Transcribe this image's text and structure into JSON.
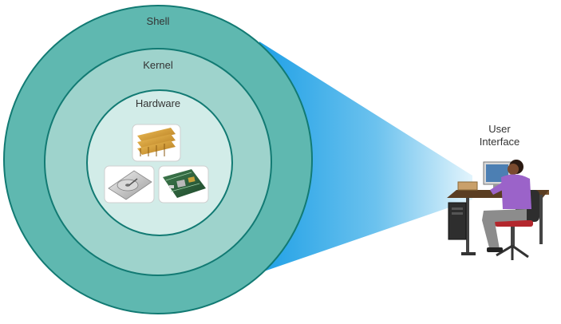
{
  "diagram": {
    "layers": {
      "shell": "Shell",
      "kernel": "Kernel",
      "hardware": "Hardware"
    },
    "user_interface": {
      "line1": "User",
      "line2": "Interface"
    },
    "hardware_items": [
      "memory-modules",
      "hard-disk-drive",
      "motherboard"
    ],
    "colors": {
      "shell_fill": "#5fb8b0",
      "kernel_fill": "#9ed3cc",
      "hardware_fill": "#d2ece8",
      "ring_stroke": "#127a73",
      "beam": "#3fa9e6",
      "shirt": "#9b63c9"
    }
  }
}
